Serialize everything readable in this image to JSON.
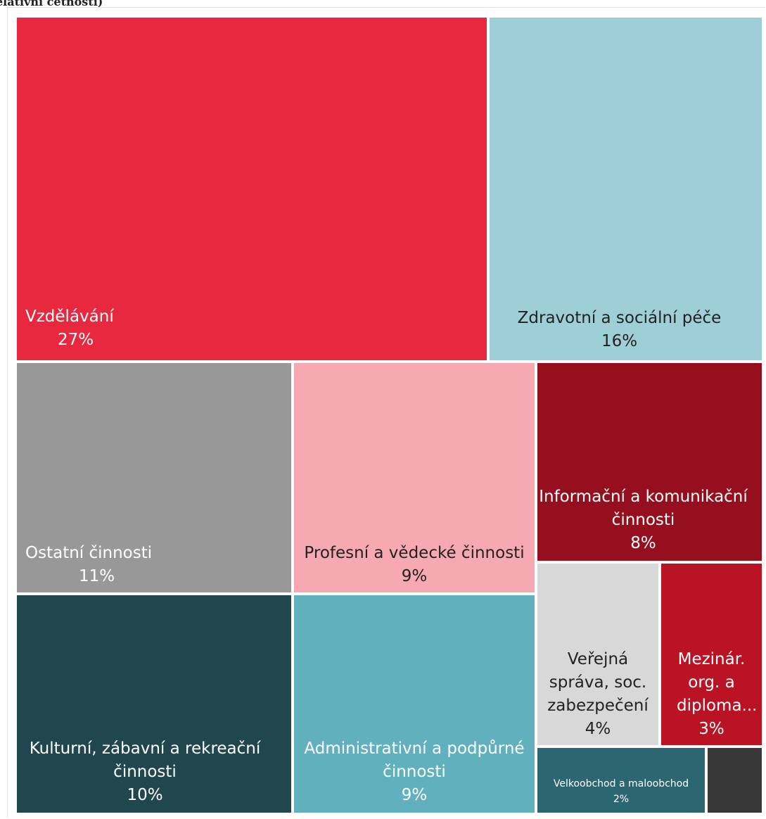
{
  "title": "elativní četnosti)",
  "chart_data": {
    "type": "treemap",
    "tiles": [
      {
        "name": "Vzdělávání",
        "value": "27%",
        "color": "#e8283e",
        "text_color": "#ffffff"
      },
      {
        "name": "Zdravotní a sociální péče",
        "value": "16%",
        "color": "#9fcfd6",
        "text_color": "#222222"
      },
      {
        "name": "Ostatní činnosti",
        "value": "11%",
        "color": "#989898",
        "text_color": "#ffffff"
      },
      {
        "name": "Profesní a vědecké činnosti",
        "value": "9%",
        "color": "#f6a9b1",
        "text_color": "#222222"
      },
      {
        "name": "Informační a komunikační činnosti",
        "value": "8%",
        "color": "#960f1e",
        "text_color": "#ffffff"
      },
      {
        "name": "Kulturní, zábavní a rekreační činnosti",
        "value": "10%",
        "color": "#20474d",
        "text_color": "#ffffff"
      },
      {
        "name": "Administrativní a podpůrné činnosti",
        "value": "9%",
        "color": "#61b0bd",
        "text_color": "#ffffff"
      },
      {
        "name": "Veřejná správa, soc. zabezpečení",
        "value": "4%",
        "color": "#d8d8d8",
        "text_color": "#222222"
      },
      {
        "name": "Mezinár. org. a diploma...",
        "value": "3%",
        "color": "#ba1424",
        "text_color": "#ffffff"
      },
      {
        "name": "Velkoobchod a maloobchod",
        "value": "2%",
        "color": "#2c6670",
        "text_color": "#ffffff"
      },
      {
        "name": "",
        "value": "",
        "color": "#383838",
        "text_color": "#ffffff"
      }
    ]
  }
}
